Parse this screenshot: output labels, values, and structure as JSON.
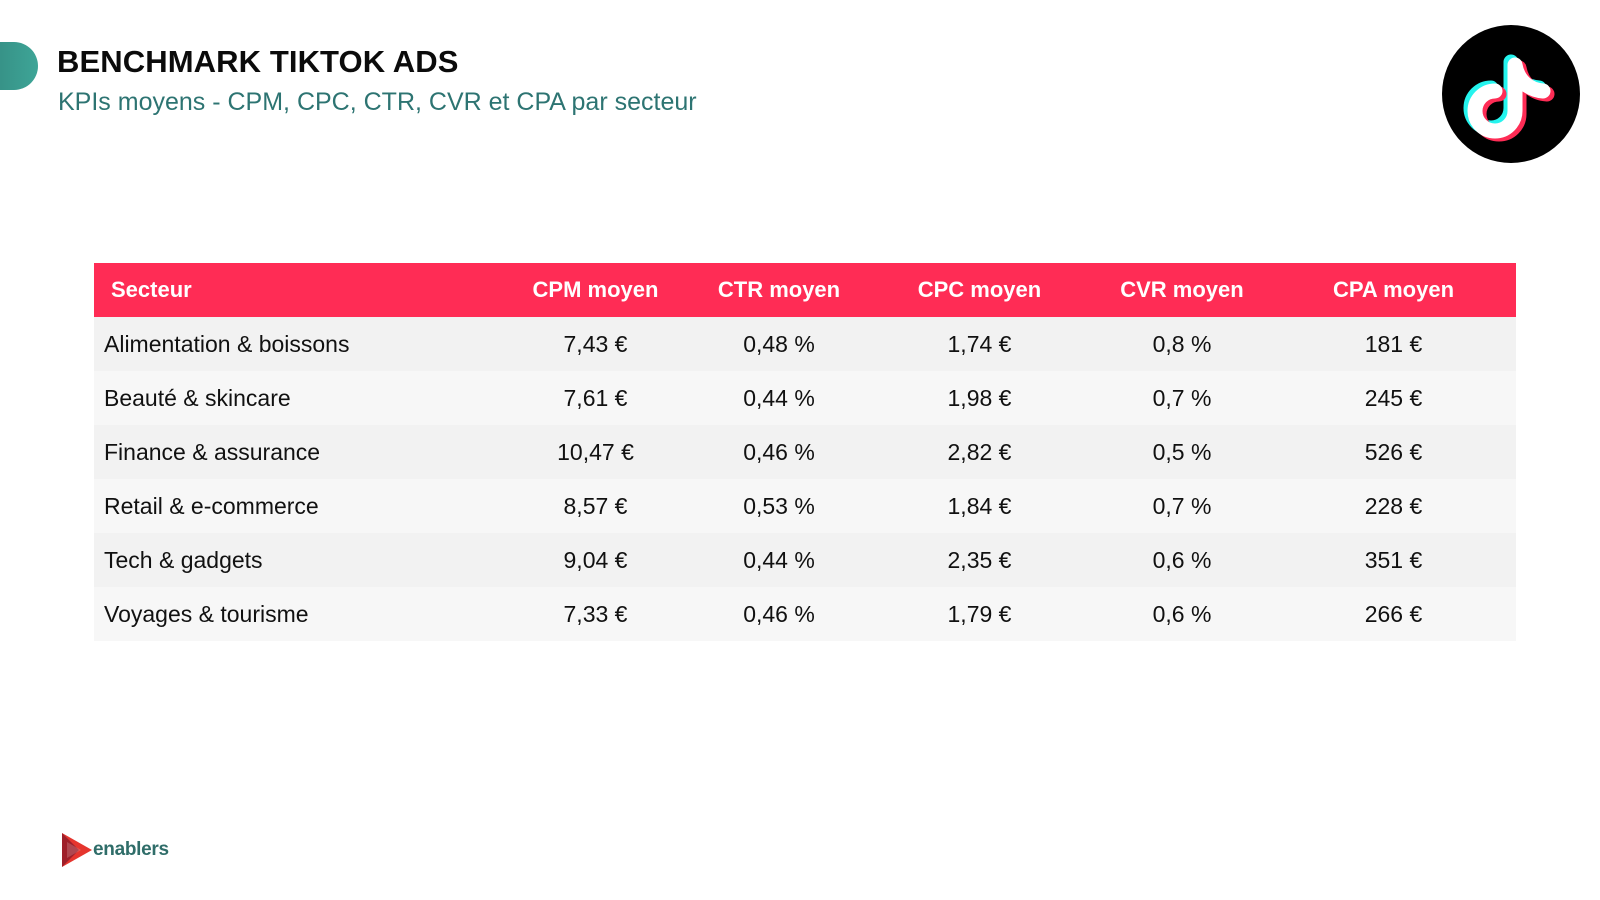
{
  "header": {
    "title": "BENCHMARK TIKTOK ADS",
    "subtitle": "KPIs moyens - CPM, CPC, CTR, CVR et CPA par secteur"
  },
  "logos": {
    "top_right": "tiktok-icon",
    "bottom_left": "enablers-play-icon",
    "brand_name": "enablers"
  },
  "colors": {
    "accent_teal": "#2f7f77",
    "subtitle_teal": "#2d7472",
    "table_header_red": "#ff2c55",
    "row_odd": "#f2f2f2",
    "row_even": "#f7f7f7"
  },
  "table": {
    "columns": [
      "Secteur",
      "CPM moyen",
      "CTR moyen",
      "CPC moyen",
      "CVR moyen",
      "CPA moyen"
    ],
    "rows": [
      [
        "Alimentation & boissons",
        "7,43 €",
        "0,48 %",
        "1,74 €",
        "0,8 %",
        "181 €"
      ],
      [
        "Beauté & skincare",
        "7,61 €",
        "0,44 %",
        "1,98 €",
        "0,7 %",
        "245 €"
      ],
      [
        "Finance & assurance",
        "10,47 €",
        "0,46 %",
        "2,82 €",
        "0,5 %",
        "526 €"
      ],
      [
        "Retail & e-commerce",
        "8,57 €",
        "0,53 %",
        "1,84 €",
        "0,7 %",
        "228 €"
      ],
      [
        "Tech & gadgets",
        "9,04 €",
        "0,44 %",
        "2,35 €",
        "0,6 %",
        "351 €"
      ],
      [
        "Voyages & tourisme",
        "7,33 €",
        "0,46 %",
        "1,79 €",
        "0,6 %",
        "266 €"
      ]
    ]
  }
}
